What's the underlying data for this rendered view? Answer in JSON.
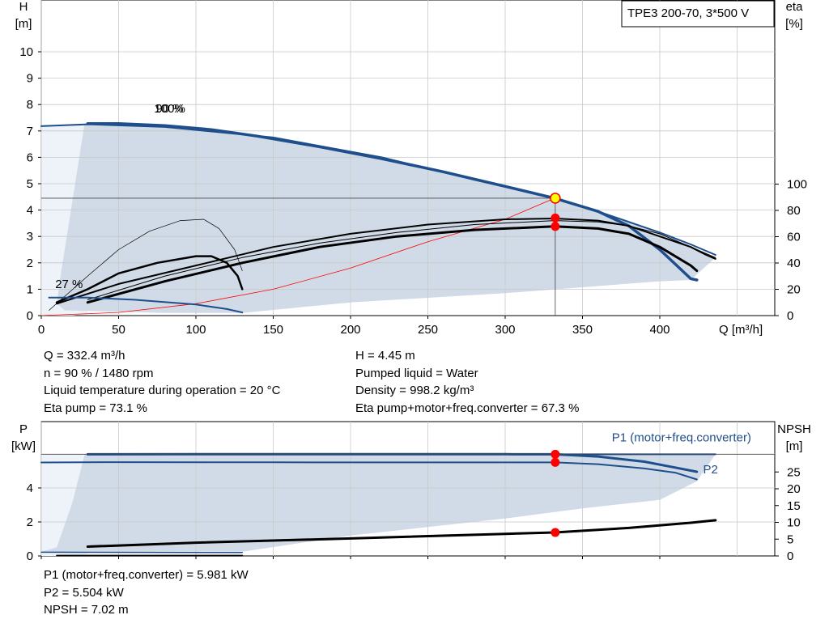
{
  "title_box": "TPE3 200-70, 3*500 V",
  "colors": {
    "curve_blue": "#1f4e8c",
    "curve_black": "#000000",
    "area_fill": "#d0dbe7",
    "area_fill_light": "#eef3fa",
    "system_curve": "#ff0000",
    "grid": "#c8c8c8",
    "marker": "#ff0000",
    "marker_yellow": "#ffff00"
  },
  "chart_data": [
    {
      "type": "line",
      "name": "QH",
      "y_left_label": [
        "H",
        "[m]"
      ],
      "y_right_label": [
        "eta",
        "[%]"
      ],
      "x_label": "Q [m³/h]",
      "x_ticks": [
        0,
        50,
        100,
        150,
        200,
        250,
        300,
        350,
        400
      ],
      "y_left_ticks": [
        0,
        1,
        2,
        3,
        4,
        5,
        6,
        7,
        8,
        9,
        10
      ],
      "y_right_ticks": [
        0,
        20,
        40,
        60,
        80,
        100
      ],
      "xlim": [
        0,
        450
      ],
      "ylim": [
        0,
        11
      ],
      "annotations": [
        {
          "text": "100%",
          "x": 73,
          "y": 7.7
        },
        {
          "text": "90 %",
          "x": 74,
          "y": 7.7
        },
        {
          "text": "27 %",
          "x": 9,
          "y": 1.05
        }
      ],
      "series": [
        {
          "key": "h100",
          "color": "#1f4e8c",
          "width": 3.5,
          "x": [
            30,
            50,
            80,
            110,
            140,
            180,
            220,
            260,
            300,
            332,
            360,
            380,
            400,
            410,
            420,
            424
          ],
          "y": [
            7.28,
            7.28,
            7.2,
            7.05,
            6.8,
            6.4,
            5.95,
            5.45,
            4.9,
            4.45,
            3.95,
            3.4,
            2.5,
            1.95,
            1.4,
            1.35
          ]
        },
        {
          "key": "h90",
          "color": "#1f4e8c",
          "width": 2,
          "x": [
            0,
            30,
            80,
            150,
            220,
            280,
            332,
            360,
            380,
            400,
            420,
            436
          ],
          "y": [
            7.18,
            7.25,
            7.15,
            6.75,
            6.0,
            5.15,
            4.45,
            3.95,
            3.55,
            3.15,
            2.7,
            2.3
          ]
        },
        {
          "key": "system",
          "color": "#ff0000",
          "width": 0.8,
          "x": [
            0,
            50,
            100,
            150,
            200,
            250,
            300,
            332
          ],
          "y": [
            0,
            0.12,
            0.45,
            1.0,
            1.8,
            2.8,
            3.65,
            4.45
          ]
        },
        {
          "key": "eta_thin",
          "color": "#000000",
          "width": 0.7,
          "x": [
            5,
            30,
            50,
            70,
            90,
            105,
            115,
            125,
            130
          ],
          "y": [
            0.2,
            1.5,
            2.5,
            3.2,
            3.6,
            3.65,
            3.3,
            2.5,
            1.7
          ]
        },
        {
          "key": "eta_mid",
          "color": "#000000",
          "width": 2.5,
          "x": [
            10,
            30,
            50,
            75,
            100,
            110,
            120,
            127,
            130
          ],
          "y": [
            0.5,
            1.0,
            1.6,
            2.0,
            2.25,
            2.25,
            2.0,
            1.5,
            1.0
          ]
        },
        {
          "key": "eta100a",
          "color": "#000000",
          "width": 2,
          "x": [
            10,
            50,
            100,
            150,
            200,
            250,
            300,
            332,
            360,
            380,
            400,
            420,
            430,
            436
          ],
          "y": [
            0.45,
            1.2,
            1.9,
            2.6,
            3.1,
            3.45,
            3.65,
            3.68,
            3.6,
            3.4,
            3.0,
            2.6,
            2.3,
            2.15
          ]
        },
        {
          "key": "eta100b",
          "color": "#000000",
          "width": 3,
          "x": [
            30,
            80,
            130,
            180,
            230,
            280,
            332,
            360,
            380,
            400,
            420,
            424
          ],
          "y": [
            0.5,
            1.3,
            2.0,
            2.6,
            3.0,
            3.25,
            3.38,
            3.3,
            3.1,
            2.6,
            1.9,
            1.7
          ]
        },
        {
          "key": "eta_outer",
          "color": "#000000",
          "width": 1,
          "x": [
            30,
            80,
            130,
            180,
            230,
            280,
            332,
            360,
            380,
            400,
            420,
            436
          ],
          "y": [
            0.6,
            1.5,
            2.2,
            2.75,
            3.15,
            3.45,
            3.6,
            3.55,
            3.4,
            3.1,
            2.6,
            2.2
          ]
        },
        {
          "key": "npsh_low",
          "color": "#1f4e8c",
          "width": 2,
          "x": [
            5,
            30,
            60,
            100,
            120,
            130
          ],
          "y": [
            0.68,
            0.68,
            0.6,
            0.42,
            0.25,
            0.12
          ]
        }
      ],
      "duty_point": {
        "x": 332.4,
        "y": 4.45
      },
      "eta_points": [
        {
          "x": 332.4,
          "y": 3.7
        },
        {
          "x": 332.4,
          "y": 3.38
        }
      ]
    },
    {
      "type": "line",
      "name": "Power",
      "y_left_label": [
        "P",
        "[kW]"
      ],
      "y_right_label": [
        "NPSH",
        "[m]"
      ],
      "x_ticks": [
        0,
        50,
        100,
        150,
        200,
        250,
        300,
        350,
        400
      ],
      "y_left_ticks": [
        0,
        2,
        4
      ],
      "y_right_ticks": [
        0,
        5,
        10,
        15,
        20,
        25
      ],
      "xlim": [
        0,
        450
      ],
      "ylim": [
        0,
        7.8
      ],
      "annotations": [
        {
          "text": "P1 (motor+freq.converter)",
          "x": 369,
          "y": 6.75
        },
        {
          "text": "P2",
          "x": 428,
          "y": 4.85
        }
      ],
      "series": [
        {
          "key": "p1_main",
          "color": "#1f4e8c",
          "width": 3,
          "x": [
            30,
            100,
            200,
            300,
            332,
            360,
            390,
            410,
            424
          ],
          "y": [
            5.98,
            5.99,
            5.99,
            5.985,
            5.981,
            5.85,
            5.55,
            5.2,
            4.95
          ]
        },
        {
          "key": "p1_flat",
          "color": "#1f4e8c",
          "width": 2,
          "x": [
            30,
            150,
            300,
            380,
            436
          ],
          "y": [
            5.98,
            5.98,
            5.98,
            5.98,
            5.98
          ]
        },
        {
          "key": "p2",
          "color": "#1f4e8c",
          "width": 2,
          "x": [
            0,
            50,
            150,
            250,
            332,
            360,
            390,
            410,
            424
          ],
          "y": [
            5.5,
            5.52,
            5.51,
            5.505,
            5.504,
            5.4,
            5.15,
            4.9,
            4.5
          ]
        },
        {
          "key": "npsh",
          "color": "#000000",
          "width": 3,
          "x": [
            30,
            100,
            200,
            300,
            332,
            380,
            420,
            436
          ],
          "y": [
            0.55,
            0.78,
            1.03,
            1.3,
            1.38,
            1.65,
            1.95,
            2.1
          ]
        },
        {
          "key": "low1",
          "color": "#1f4e8c",
          "width": 1.5,
          "x": [
            0,
            130
          ],
          "y": [
            0.22,
            0.2
          ]
        },
        {
          "key": "low2",
          "color": "#000000",
          "width": 2,
          "x": [
            10,
            130
          ],
          "y": [
            0.02,
            0.02
          ]
        }
      ],
      "points": [
        {
          "x": 332.4,
          "y": 5.981
        },
        {
          "x": 332.4,
          "y": 5.504
        },
        {
          "x": 332.4,
          "y": 1.38
        }
      ]
    }
  ],
  "info_top_left": [
    "Q = 332.4 m³/h",
    "n = 90 % / 1480 rpm",
    "Liquid temperature during operation = 20 °C",
    "Eta pump = 73.1 %"
  ],
  "info_top_right": [
    "H = 4.45 m",
    "Pumped liquid = Water",
    "Density = 998.2 kg/m³",
    "Eta pump+motor+freq.converter = 67.3 %"
  ],
  "info_bottom": [
    "P1 (motor+freq.converter) = 5.981 kW",
    "P2 = 5.504 kW",
    "NPSH = 7.02 m"
  ]
}
